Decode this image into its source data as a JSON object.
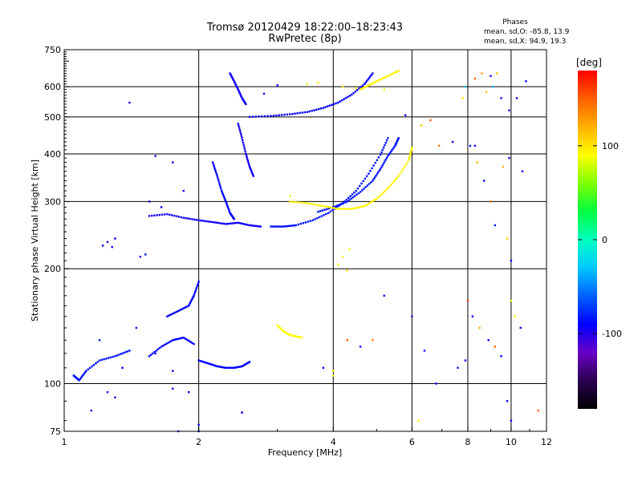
{
  "chart_data": {
    "type": "scatter",
    "title": "Tromsø 20120429 18:22:00–18:23:43",
    "subtitle": "RwPretec (8p)",
    "xlabel": "Frequency [MHz]",
    "ylabel": "Stationary phase Virtual Height [km]",
    "x_scale": "log",
    "y_scale": "log",
    "xlim": [
      1,
      12
    ],
    "ylim": [
      75,
      750
    ],
    "x_ticks": [
      1,
      2,
      4,
      6,
      8,
      10,
      12
    ],
    "y_ticks": [
      75,
      100,
      200,
      300,
      400,
      500,
      600,
      750
    ],
    "grid": true,
    "phases_header": "Phases",
    "phases_stats": [
      "mean, sd,O: -85.8, 13.9",
      "mean, sd,X:  94.9, 19.3"
    ],
    "colorbar": {
      "label": "[deg]",
      "min": -180,
      "max": 180,
      "ticks": [
        100,
        0,
        -100
      ],
      "colormap": [
        "#000000",
        "#2a004f",
        "#6a00c8",
        "#0000ff",
        "#0060ff",
        "#00c8ff",
        "#00ffc0",
        "#00ff40",
        "#7fff00",
        "#ffff00",
        "#ffb000",
        "#ff6000",
        "#ff0000"
      ]
    },
    "traces": [
      {
        "name": "",
        "phase": -90,
        "points": [
          [
            2.0,
            115
          ],
          [
            2.1,
            113
          ],
          [
            2.2,
            111
          ],
          [
            2.3,
            110
          ],
          [
            2.4,
            110
          ],
          [
            2.5,
            111
          ],
          [
            2.6,
            114
          ]
        ]
      },
      {
        "name": "",
        "phase": -90,
        "points": [
          [
            1.55,
            118
          ],
          [
            1.65,
            125
          ],
          [
            1.75,
            130
          ],
          [
            1.85,
            132
          ],
          [
            1.95,
            127
          ]
        ]
      },
      {
        "name": "",
        "phase": -85,
        "points": [
          [
            2.9,
            258
          ],
          [
            3.1,
            258
          ],
          [
            3.3,
            260
          ],
          [
            3.6,
            268
          ],
          [
            3.9,
            280
          ],
          [
            4.2,
            297
          ],
          [
            4.5,
            320
          ],
          [
            4.8,
            355
          ],
          [
            5.1,
            398
          ],
          [
            5.3,
            440
          ]
        ]
      },
      {
        "name": "",
        "phase": -85,
        "points": [
          [
            3.7,
            282
          ],
          [
            4.0,
            290
          ],
          [
            4.3,
            300
          ],
          [
            4.6,
            318
          ],
          [
            4.9,
            340
          ],
          [
            5.1,
            365
          ],
          [
            5.3,
            395
          ],
          [
            5.5,
            420
          ],
          [
            5.6,
            440
          ]
        ]
      },
      {
        "name": "",
        "phase": -90,
        "points": [
          [
            2.6,
            500
          ],
          [
            2.9,
            503
          ],
          [
            3.2,
            508
          ],
          [
            3.5,
            515
          ],
          [
            3.8,
            528
          ],
          [
            4.1,
            545
          ],
          [
            4.4,
            572
          ],
          [
            4.7,
            610
          ],
          [
            4.9,
            650
          ]
        ]
      },
      {
        "name": "",
        "phase": 95,
        "points": [
          [
            3.2,
            300
          ],
          [
            3.5,
            297
          ],
          [
            3.8,
            292
          ],
          [
            4.1,
            287
          ],
          [
            4.4,
            287
          ],
          [
            4.7,
            292
          ],
          [
            5.0,
            305
          ],
          [
            5.3,
            325
          ],
          [
            5.6,
            350
          ],
          [
            5.9,
            385
          ],
          [
            6.0,
            415
          ]
        ]
      },
      {
        "name": "",
        "phase": 95,
        "points": [
          [
            4.6,
            590
          ],
          [
            4.8,
            605
          ],
          [
            5.0,
            620
          ],
          [
            5.3,
            640
          ],
          [
            5.6,
            660
          ]
        ]
      },
      {
        "name": "",
        "phase": 90,
        "points": [
          [
            3.0,
            142
          ],
          [
            3.1,
            137
          ],
          [
            3.2,
            134
          ],
          [
            3.3,
            133
          ],
          [
            3.4,
            132
          ]
        ]
      },
      {
        "name": "",
        "phase": -95,
        "points": [
          [
            2.35,
            650
          ],
          [
            2.4,
            620
          ],
          [
            2.45,
            590
          ],
          [
            2.5,
            560
          ],
          [
            2.55,
            540
          ]
        ]
      },
      {
        "name": "",
        "phase": -95,
        "points": [
          [
            2.45,
            480
          ],
          [
            2.5,
            440
          ],
          [
            2.55,
            400
          ],
          [
            2.6,
            370
          ],
          [
            2.65,
            350
          ]
        ]
      },
      {
        "name": "",
        "phase": -90,
        "points": [
          [
            2.15,
            380
          ],
          [
            2.2,
            350
          ],
          [
            2.25,
            320
          ],
          [
            2.3,
            300
          ],
          [
            2.35,
            280
          ],
          [
            2.4,
            270
          ]
        ]
      },
      {
        "name": "",
        "phase": -95,
        "points": [
          [
            1.55,
            275
          ],
          [
            1.7,
            278
          ],
          [
            1.85,
            272
          ],
          [
            2.0,
            268
          ],
          [
            2.15,
            265
          ],
          [
            2.3,
            262
          ],
          [
            2.45,
            264
          ],
          [
            2.6,
            260
          ],
          [
            2.75,
            258
          ]
        ]
      },
      {
        "name": "",
        "phase": -90,
        "points": [
          [
            1.7,
            150
          ],
          [
            1.8,
            155
          ],
          [
            1.9,
            160
          ],
          [
            1.95,
            170
          ],
          [
            2.0,
            185
          ]
        ]
      },
      {
        "name": "",
        "phase": -85,
        "points": [
          [
            1.05,
            105
          ],
          [
            1.08,
            102
          ],
          [
            1.12,
            108
          ],
          [
            1.2,
            115
          ],
          [
            1.3,
            118
          ],
          [
            1.4,
            122
          ]
        ]
      }
    ],
    "scatter_points": [
      [
        1.22,
        230,
        -90
      ],
      [
        1.25,
        235,
        -95
      ],
      [
        1.3,
        240,
        -90
      ],
      [
        1.28,
        228,
        -88
      ],
      [
        1.48,
        215,
        -95
      ],
      [
        1.52,
        218,
        -90
      ],
      [
        1.6,
        395,
        -95
      ],
      [
        1.75,
        380,
        -90
      ],
      [
        1.85,
        320,
        -88
      ],
      [
        1.55,
        300,
        -92
      ],
      [
        1.65,
        290,
        -90
      ],
      [
        1.4,
        545,
        -95
      ],
      [
        1.2,
        130,
        -85
      ],
      [
        1.35,
        110,
        -90
      ],
      [
        1.45,
        140,
        -92
      ],
      [
        1.6,
        120,
        -88
      ],
      [
        1.75,
        108,
        -90
      ],
      [
        1.25,
        95,
        -85
      ],
      [
        1.3,
        92,
        -95
      ],
      [
        1.15,
        85,
        -100
      ],
      [
        1.75,
        97,
        -85
      ],
      [
        1.9,
        95,
        -90
      ],
      [
        2.0,
        75,
        -95
      ],
      [
        2.5,
        84,
        -90
      ],
      [
        3.0,
        605,
        -90
      ],
      [
        2.8,
        575,
        -92
      ],
      [
        3.5,
        610,
        95
      ],
      [
        3.7,
        615,
        100
      ],
      [
        4.2,
        600,
        95
      ],
      [
        4.5,
        595,
        90
      ],
      [
        5.2,
        590,
        95
      ],
      [
        5.8,
        505,
        -88
      ],
      [
        6.3,
        475,
        110
      ],
      [
        6.6,
        490,
        150
      ],
      [
        6.9,
        420,
        140
      ],
      [
        7.4,
        430,
        -95
      ],
      [
        7.8,
        560,
        100
      ],
      [
        7.9,
        600,
        -30
      ],
      [
        8.3,
        630,
        150
      ],
      [
        8.6,
        650,
        130
      ],
      [
        8.8,
        580,
        110
      ],
      [
        9.0,
        640,
        -100
      ],
      [
        9.1,
        600,
        -40
      ],
      [
        9.3,
        650,
        110
      ],
      [
        9.5,
        560,
        -95
      ],
      [
        9.9,
        520,
        -100
      ],
      [
        10.3,
        560,
        -95
      ],
      [
        10.8,
        620,
        -90
      ],
      [
        8.1,
        420,
        -85
      ],
      [
        8.4,
        380,
        120
      ],
      [
        8.7,
        340,
        -90
      ],
      [
        9.0,
        300,
        140
      ],
      [
        9.6,
        370,
        120
      ],
      [
        9.9,
        390,
        -95
      ],
      [
        10.6,
        360,
        -90
      ],
      [
        9.2,
        260,
        -85
      ],
      [
        9.8,
        240,
        110
      ],
      [
        10.0,
        210,
        -90
      ],
      [
        8.3,
        420,
        -95
      ],
      [
        8.0,
        165,
        160
      ],
      [
        8.2,
        150,
        -90
      ],
      [
        8.5,
        140,
        120
      ],
      [
        8.9,
        130,
        -95
      ],
      [
        9.2,
        125,
        150
      ],
      [
        9.5,
        118,
        -90
      ],
      [
        10.0,
        165,
        90
      ],
      [
        10.2,
        150,
        100
      ],
      [
        10.5,
        140,
        -90
      ],
      [
        11.5,
        85,
        150
      ],
      [
        10.0,
        80,
        -95
      ],
      [
        9.8,
        90,
        -90
      ],
      [
        7.6,
        110,
        -85
      ],
      [
        7.9,
        115,
        -95
      ],
      [
        6.4,
        122,
        -90
      ],
      [
        6.0,
        150,
        -100
      ],
      [
        5.2,
        170,
        -95
      ],
      [
        4.9,
        130,
        140
      ],
      [
        4.6,
        125,
        -90
      ],
      [
        4.3,
        130,
        150
      ],
      [
        4.0,
        105,
        95
      ],
      [
        4.0,
        108,
        100
      ],
      [
        4.1,
        205,
        95
      ],
      [
        3.2,
        310,
        95
      ],
      [
        4.2,
        215,
        95
      ],
      [
        4.3,
        198,
        100
      ],
      [
        4.35,
        225,
        90
      ],
      [
        3.8,
        110,
        -90
      ],
      [
        6.8,
        100,
        -95
      ],
      [
        6.2,
        80,
        100
      ],
      [
        2.5,
        84,
        -100
      ],
      [
        1.8,
        75,
        -95
      ],
      [
        2.0,
        78,
        -90
      ]
    ]
  }
}
